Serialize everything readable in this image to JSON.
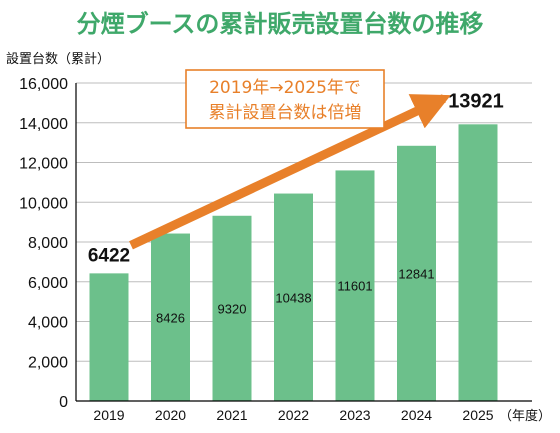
{
  "chart_data": {
    "type": "bar",
    "title": "分煙ブースの累計販売設置台数の推移",
    "ylabel": "設置台数（累計）",
    "xunit": "（年度）",
    "categories": [
      "2019",
      "2020",
      "2021",
      "2022",
      "2023",
      "2024",
      "2025"
    ],
    "values": [
      6422,
      8426,
      9320,
      10438,
      11601,
      12841,
      13921
    ],
    "data_labels": [
      "6422",
      "8426",
      "9320",
      "10438",
      "11601",
      "12841",
      "13921"
    ],
    "ylim": [
      0,
      16000
    ],
    "yticks": [
      0,
      2000,
      4000,
      6000,
      8000,
      10000,
      12000,
      14000,
      16000
    ],
    "ytick_labels": [
      "0",
      "2,000",
      "4,000",
      "6,000",
      "8,000",
      "10,000",
      "12,000",
      "14,000",
      "16,000"
    ],
    "grid": true,
    "annotation": {
      "line1": "2019年→2025年で",
      "line2": "累計設置台数は倍増",
      "from_category": "2019",
      "to_category": "2025"
    }
  },
  "colors": {
    "bar": "#6cc08b",
    "title": "#3fa86a",
    "arrow": "#e8802a",
    "box_border": "#e8802a",
    "grid": "#bdbdbd",
    "axis": "#000000",
    "text": "#111111"
  }
}
